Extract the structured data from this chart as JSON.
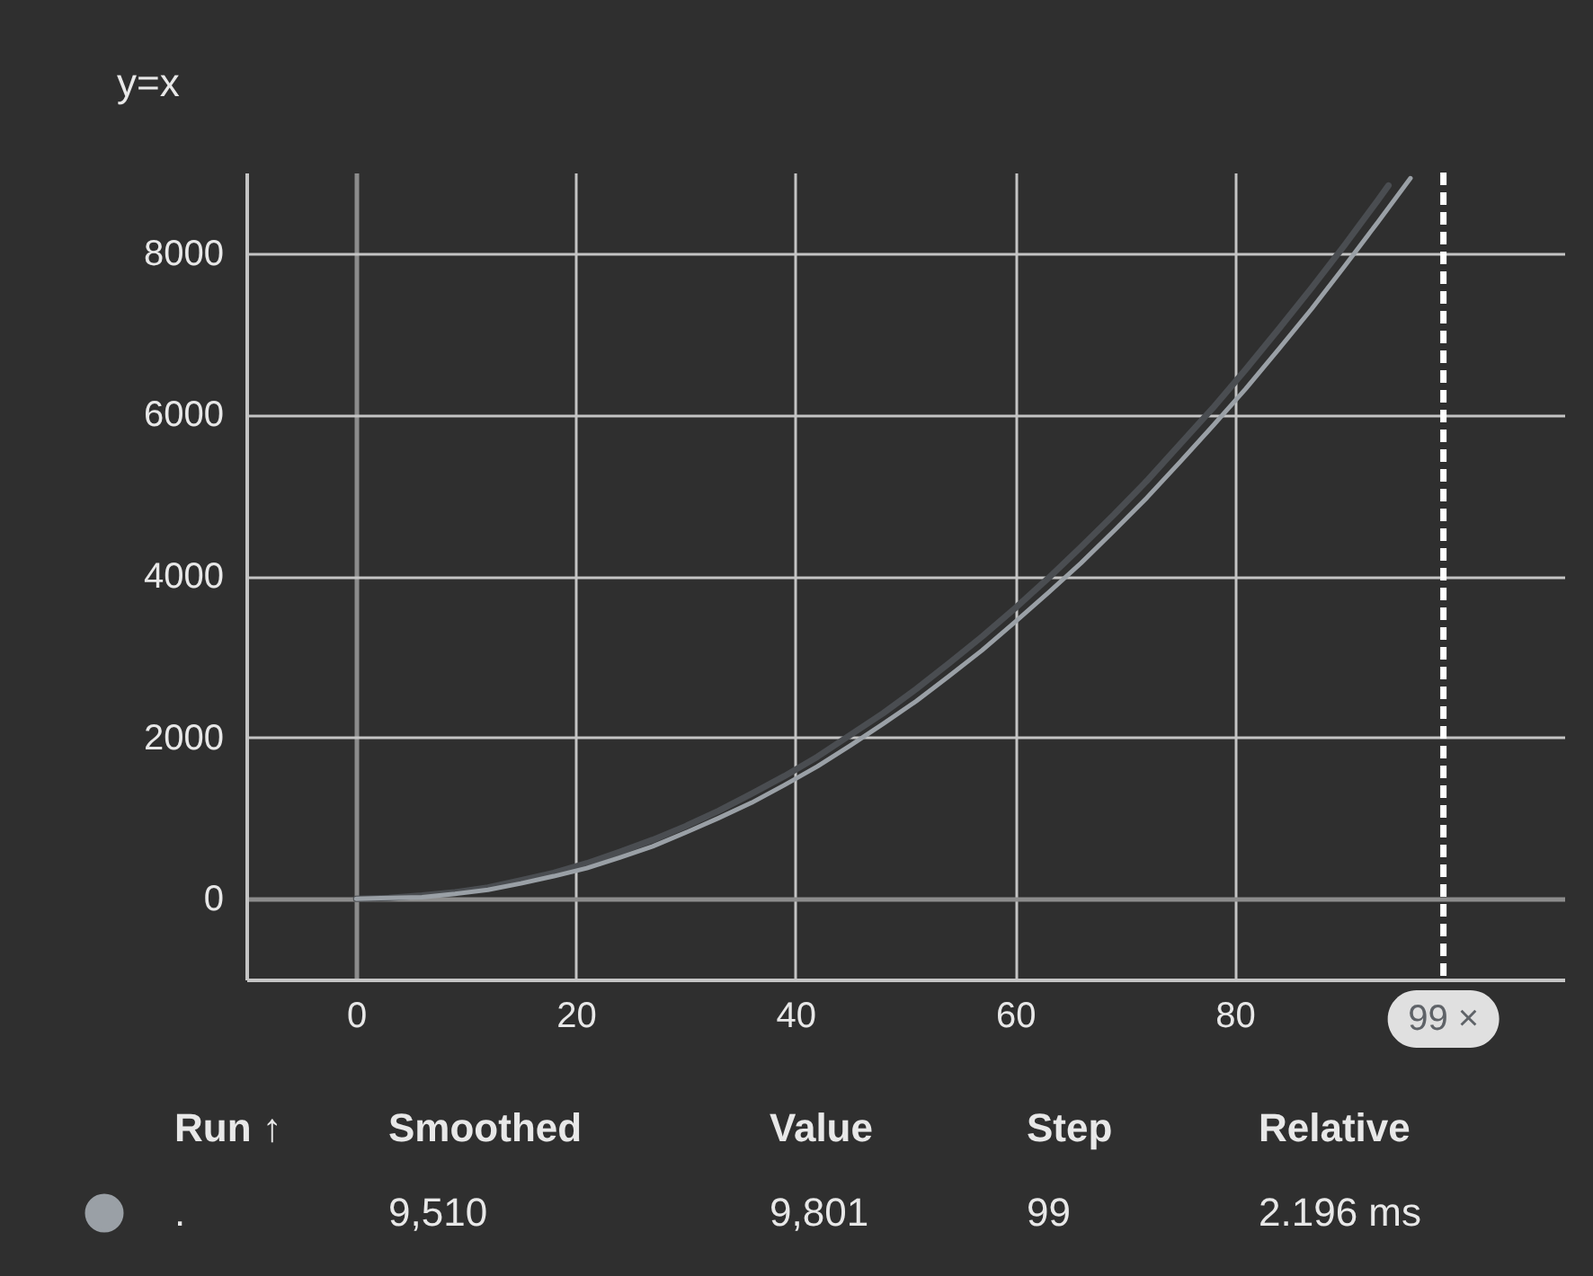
{
  "chart_data": {
    "type": "line",
    "title": "y=x",
    "xlim": [
      -10,
      110
    ],
    "ylim": [
      -1000,
      9000
    ],
    "xticks": [
      0,
      20,
      40,
      60,
      80
    ],
    "yticks": [
      0,
      2000,
      4000,
      6000,
      8000
    ],
    "grid": true,
    "legend": "bottom left",
    "line_style": "solid",
    "series": [
      {
        "color": "#4a4d51",
        "x": [
          0,
          3,
          6,
          9,
          12,
          15,
          18,
          21,
          24,
          27,
          30,
          33,
          36,
          39,
          42,
          45,
          48,
          51,
          54,
          57,
          60,
          63,
          66,
          69,
          72,
          75,
          78,
          81,
          84,
          87,
          90,
          93,
          94
        ],
        "values": [
          0,
          10,
          40,
          80,
          140,
          230,
          320,
          440,
          580,
          730,
          900,
          1090,
          1300,
          1520,
          1760,
          2030,
          2300,
          2600,
          2920,
          3250,
          3600,
          3970,
          4360,
          4760,
          5180,
          5630,
          6080,
          6560,
          7060,
          7570,
          8100,
          8650,
          8840
        ]
      },
      {
        "name": ".",
        "color": "#9aa0a6",
        "x": [
          0,
          3,
          6,
          9,
          12,
          15,
          18,
          21,
          24,
          27,
          30,
          33,
          36,
          39,
          42,
          45,
          48,
          51,
          54,
          57,
          60,
          63,
          66,
          69,
          72,
          75,
          78,
          81,
          84,
          87,
          90,
          93,
          96
        ],
        "values": [
          0,
          10,
          20,
          60,
          110,
          190,
          280,
          380,
          510,
          650,
          820,
          1000,
          1190,
          1410,
          1640,
          1900,
          2170,
          2450,
          2760,
          3080,
          3430,
          3790,
          4160,
          4560,
          4970,
          5410,
          5860,
          6320,
          6810,
          7310,
          7840,
          8380,
          8930
        ]
      }
    ],
    "ref_lines": [
      {
        "axis": "x",
        "value": 99,
        "label": "99 ×",
        "color": "#ffffff",
        "line_style": "dashed"
      }
    ],
    "annotations": [
      "Run ↑",
      "Smoothed",
      "Value",
      "Step",
      "Relative",
      "9,510",
      "9,801",
      "99",
      "2.196 ms"
    ]
  }
}
